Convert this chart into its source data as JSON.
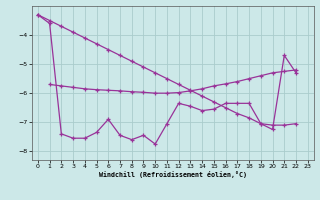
{
  "xlabel": "Windchill (Refroidissement éolien,°C)",
  "background_color": "#cce8e8",
  "grid_color": "#aacccc",
  "line_color": "#993399",
  "x": [
    0,
    1,
    2,
    3,
    4,
    5,
    6,
    7,
    8,
    9,
    10,
    11,
    12,
    13,
    14,
    15,
    16,
    17,
    18,
    19,
    20,
    21,
    22,
    23
  ],
  "y_main": [
    -3.3,
    -3.6,
    -7.4,
    -7.55,
    -7.55,
    -7.35,
    -6.9,
    -7.45,
    -7.6,
    -7.45,
    -7.75,
    -7.05,
    -6.35,
    -6.45,
    -6.6,
    -6.55,
    -6.35,
    -6.35,
    -6.35,
    -7.05,
    -7.25,
    -4.7,
    -5.3,
    null
  ],
  "y_diag1": [
    -3.3,
    -3.5,
    -3.7,
    -3.9,
    -4.1,
    -4.3,
    -4.5,
    -4.7,
    -4.9,
    -5.1,
    -5.3,
    -5.5,
    -5.7,
    -5.9,
    -6.1,
    -6.3,
    -6.5,
    -6.7,
    -6.85,
    -7.05,
    -7.1,
    -7.1,
    -7.05,
    null
  ],
  "y_diag2": [
    null,
    -5.7,
    -5.75,
    -5.8,
    -5.85,
    -5.88,
    -5.9,
    -5.92,
    -5.95,
    -5.97,
    -6.0,
    -6.0,
    -5.98,
    -5.92,
    -5.85,
    -5.75,
    -5.68,
    -5.6,
    -5.5,
    -5.4,
    -5.3,
    -5.25,
    -5.2,
    null
  ],
  "ylim": [
    -8.3,
    -3.0
  ],
  "xlim": [
    -0.5,
    23.5
  ],
  "yticks": [
    -8,
    -7,
    -6,
    -5,
    -4
  ],
  "xticks": [
    0,
    1,
    2,
    3,
    4,
    5,
    6,
    7,
    8,
    9,
    10,
    11,
    12,
    13,
    14,
    15,
    16,
    17,
    18,
    19,
    20,
    21,
    22,
    23
  ]
}
